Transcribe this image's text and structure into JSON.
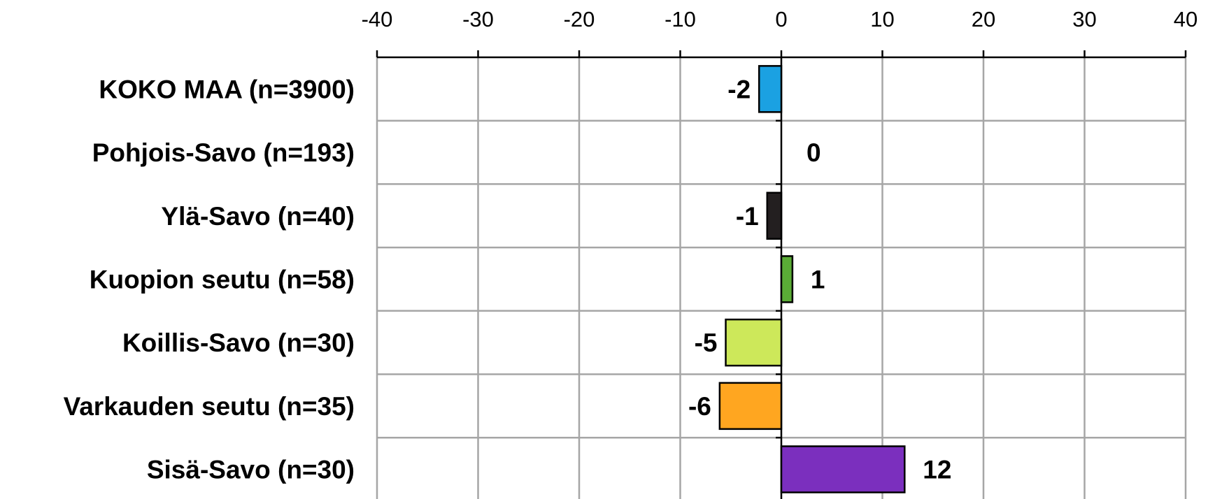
{
  "chart_data": {
    "type": "bar",
    "orientation": "horizontal",
    "title": "",
    "xlabel": "",
    "ylabel": "",
    "xlim": [
      -40,
      40
    ],
    "x_ticks": [
      "-40",
      "-30",
      "-20",
      "-10",
      "0",
      "10",
      "20",
      "30",
      "40"
    ],
    "x_axis_position": "top",
    "grid": true,
    "legend": "none",
    "categories": [
      "KOKO MAA (n=3900)",
      "Pohjois-Savo (n=193)",
      "Ylä-Savo (n=40)",
      "Kuopion seutu (n=58)",
      "Koillis-Savo (n=30)",
      "Varkauden seutu (n=35)",
      "Sisä-Savo (n=30)"
    ],
    "values": [
      -2.2,
      0,
      -1.4,
      1.1,
      -5.5,
      -6.1,
      12.2
    ],
    "data_labels": [
      "-2",
      "0",
      "-1",
      "1",
      "-5",
      "-6",
      "12"
    ],
    "colors": [
      "#1ba1e2",
      "#ffffff",
      "#231f20",
      "#5aac36",
      "#cde85a",
      "#ffa620",
      "#7b2fbe"
    ]
  }
}
